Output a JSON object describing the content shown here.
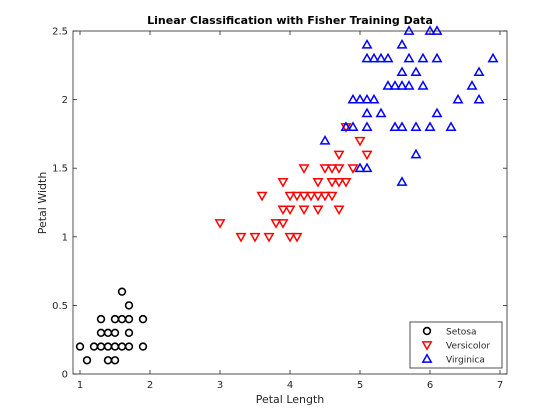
{
  "chart_data": {
    "type": "scatter",
    "title": "Linear Classification with Fisher Training Data",
    "xlabel": "Petal Length",
    "ylabel": "Petal Width",
    "xlim": [
      0.9,
      7.1
    ],
    "ylim": [
      0,
      2.5
    ],
    "xticks": [
      1,
      2,
      3,
      4,
      5,
      6,
      7
    ],
    "yticks": [
      0,
      0.5,
      1,
      1.5,
      2,
      2.5
    ],
    "grid": false,
    "legend_position": "bottom-right",
    "series": [
      {
        "name": "Setosa",
        "marker": "circle",
        "color": "#000000",
        "points": [
          [
            1.0,
            0.2
          ],
          [
            1.1,
            0.1
          ],
          [
            1.2,
            0.2
          ],
          [
            1.3,
            0.2
          ],
          [
            1.3,
            0.3
          ],
          [
            1.3,
            0.4
          ],
          [
            1.4,
            0.1
          ],
          [
            1.4,
            0.2
          ],
          [
            1.4,
            0.3
          ],
          [
            1.5,
            0.1
          ],
          [
            1.5,
            0.2
          ],
          [
            1.5,
            0.3
          ],
          [
            1.5,
            0.4
          ],
          [
            1.6,
            0.2
          ],
          [
            1.6,
            0.4
          ],
          [
            1.6,
            0.6
          ],
          [
            1.7,
            0.2
          ],
          [
            1.7,
            0.3
          ],
          [
            1.7,
            0.4
          ],
          [
            1.7,
            0.5
          ],
          [
            1.9,
            0.2
          ],
          [
            1.9,
            0.4
          ]
        ]
      },
      {
        "name": "Versicolor",
        "marker": "triangle-down",
        "color": "#ff0000",
        "points": [
          [
            3.0,
            1.1
          ],
          [
            3.3,
            1.0
          ],
          [
            3.5,
            1.0
          ],
          [
            3.6,
            1.3
          ],
          [
            3.7,
            1.0
          ],
          [
            3.8,
            1.1
          ],
          [
            3.9,
            1.1
          ],
          [
            3.9,
            1.2
          ],
          [
            3.9,
            1.4
          ],
          [
            4.0,
            1.0
          ],
          [
            4.0,
            1.2
          ],
          [
            4.0,
            1.3
          ],
          [
            4.1,
            1.0
          ],
          [
            4.1,
            1.3
          ],
          [
            4.2,
            1.2
          ],
          [
            4.2,
            1.3
          ],
          [
            4.2,
            1.5
          ],
          [
            4.3,
            1.3
          ],
          [
            4.4,
            1.2
          ],
          [
            4.4,
            1.3
          ],
          [
            4.4,
            1.4
          ],
          [
            4.5,
            1.3
          ],
          [
            4.5,
            1.5
          ],
          [
            4.6,
            1.3
          ],
          [
            4.6,
            1.4
          ],
          [
            4.6,
            1.5
          ],
          [
            4.7,
            1.2
          ],
          [
            4.7,
            1.4
          ],
          [
            4.7,
            1.5
          ],
          [
            4.7,
            1.6
          ],
          [
            4.8,
            1.4
          ],
          [
            4.8,
            1.8
          ],
          [
            4.9,
            1.5
          ],
          [
            5.0,
            1.7
          ],
          [
            5.1,
            1.6
          ]
        ]
      },
      {
        "name": "Virginica",
        "marker": "triangle-up",
        "color": "#0000ff",
        "points": [
          [
            4.5,
            1.7
          ],
          [
            4.8,
            1.8
          ],
          [
            4.9,
            1.8
          ],
          [
            4.9,
            2.0
          ],
          [
            5.0,
            1.5
          ],
          [
            5.0,
            2.0
          ],
          [
            5.1,
            1.5
          ],
          [
            5.1,
            1.8
          ],
          [
            5.1,
            1.9
          ],
          [
            5.1,
            2.0
          ],
          [
            5.1,
            2.3
          ],
          [
            5.1,
            2.4
          ],
          [
            5.2,
            2.0
          ],
          [
            5.2,
            2.3
          ],
          [
            5.3,
            1.9
          ],
          [
            5.3,
            2.3
          ],
          [
            5.4,
            2.1
          ],
          [
            5.4,
            2.3
          ],
          [
            5.5,
            1.8
          ],
          [
            5.5,
            2.1
          ],
          [
            5.6,
            1.4
          ],
          [
            5.6,
            1.8
          ],
          [
            5.6,
            2.1
          ],
          [
            5.6,
            2.2
          ],
          [
            5.6,
            2.4
          ],
          [
            5.7,
            2.1
          ],
          [
            5.7,
            2.3
          ],
          [
            5.7,
            2.5
          ],
          [
            5.8,
            1.6
          ],
          [
            5.8,
            1.8
          ],
          [
            5.8,
            2.2
          ],
          [
            5.9,
            2.1
          ],
          [
            5.9,
            2.3
          ],
          [
            6.0,
            1.8
          ],
          [
            6.0,
            2.5
          ],
          [
            6.1,
            1.9
          ],
          [
            6.1,
            2.3
          ],
          [
            6.1,
            2.5
          ],
          [
            6.3,
            1.8
          ],
          [
            6.4,
            2.0
          ],
          [
            6.6,
            2.1
          ],
          [
            6.7,
            2.0
          ],
          [
            6.7,
            2.2
          ],
          [
            6.9,
            2.3
          ]
        ]
      }
    ]
  }
}
